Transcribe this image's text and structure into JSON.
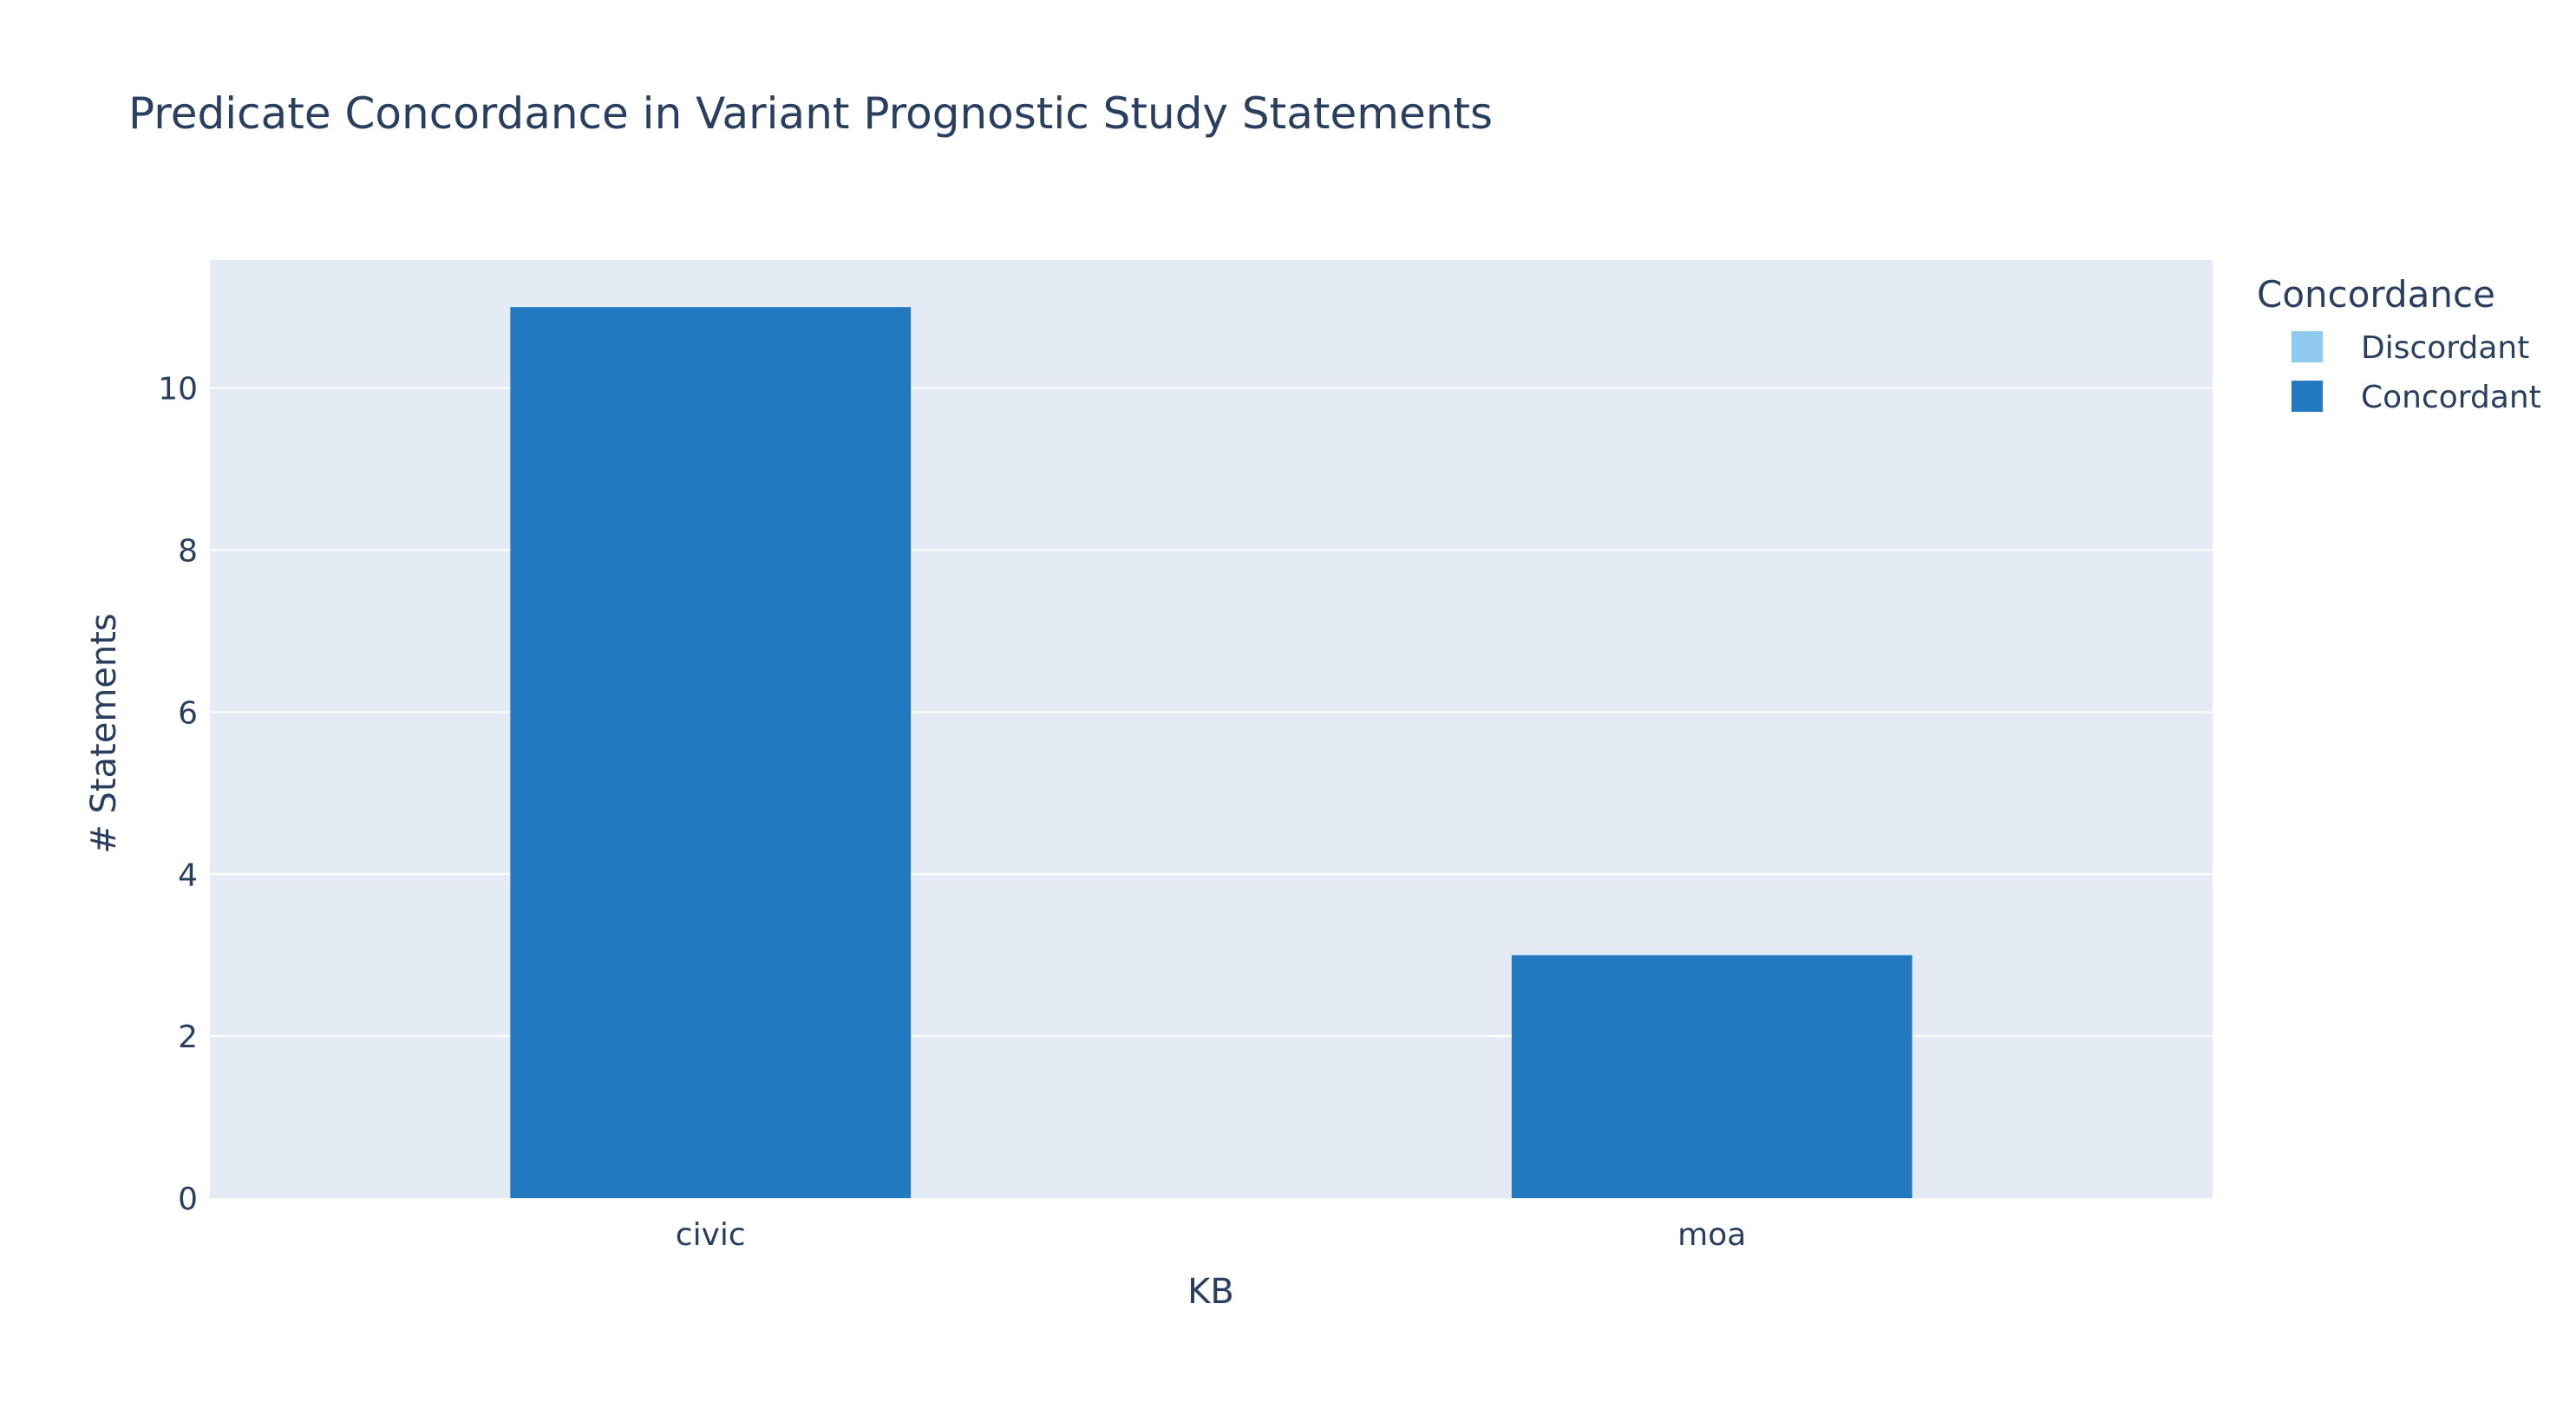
{
  "chart_data": {
    "type": "bar",
    "barmode": "stack",
    "title": "Predicate Concordance in Variant Prognostic Study Statements",
    "xlabel": "KB",
    "ylabel": "# Statements",
    "categories": [
      "civic",
      "moa"
    ],
    "ylim": [
      0,
      11.58
    ],
    "yticks": [
      0,
      2,
      4,
      6,
      8,
      10
    ],
    "grid": true,
    "legend_title": "Concordance",
    "legend_position": "top-right",
    "series": [
      {
        "name": "Discordant",
        "values": [
          0,
          0
        ],
        "color": "#8ecaee"
      },
      {
        "name": "Concordant",
        "values": [
          11,
          3
        ],
        "color": "#2279bf"
      }
    ]
  },
  "colors": {
    "plot_background": "#e5ebf5",
    "page_background": "#ffffff",
    "grid": "#ffffff",
    "text": "#2a3f5f"
  }
}
